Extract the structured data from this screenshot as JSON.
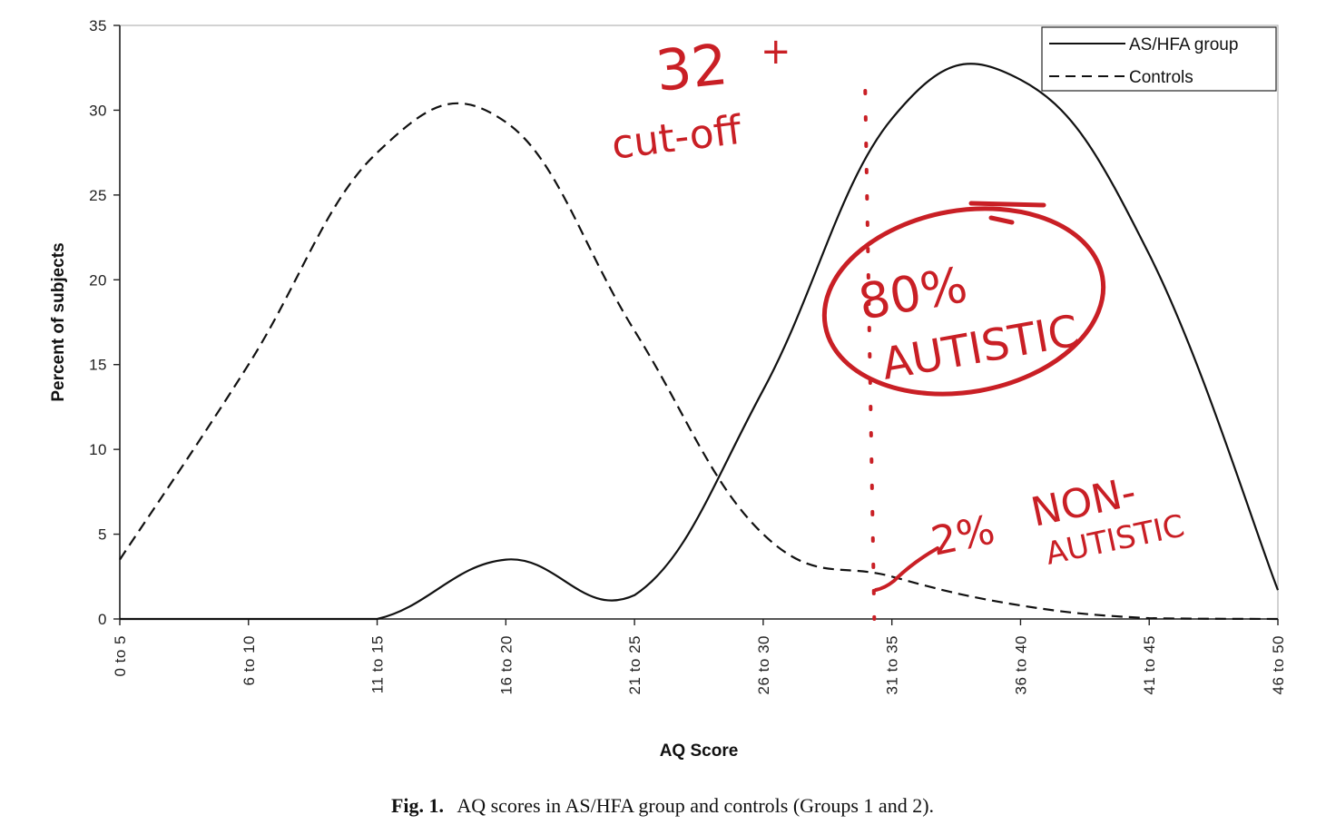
{
  "chart_data": {
    "type": "line",
    "xlabel": "AQ Score",
    "ylabel": "Percent of subjects",
    "ylim": [
      0,
      35
    ],
    "yticks": [
      "0",
      "5",
      "10",
      "15",
      "20",
      "25",
      "30",
      "35"
    ],
    "categories": [
      "0 to 5",
      "6 to 10",
      "11 to 15",
      "16 to 20",
      "21 to 25",
      "26 to 30",
      "31 to 35",
      "36 to 40",
      "41 to 45",
      "46 to 50"
    ],
    "series": [
      {
        "name": "AS/HFA group",
        "style": "solid",
        "color": "#111111",
        "values": [
          0,
          0,
          0,
          3.5,
          1.4,
          13.5,
          29.5,
          31.8,
          21.5,
          1.7
        ]
      },
      {
        "name": "Controls",
        "style": "dashed",
        "color": "#111111",
        "values": [
          3.5,
          15,
          27.5,
          29.3,
          17,
          5,
          2.5,
          0.8,
          0.05,
          0
        ]
      }
    ],
    "legend_position": "top-right",
    "grid": false,
    "caption_label": "Fig. 1.",
    "caption_text": "AQ scores in AS/HFA group and controls (Groups 1 and 2).",
    "annotations": {
      "color": "#c91f25",
      "cutoff_value": 32,
      "cutoff_number": "32",
      "cutoff_plus": "+",
      "cutoff_label": "cut-off",
      "percent_autistic": "80%",
      "autistic_word": "AUTISTIC",
      "percent_non": "2%",
      "non_word": "NON-",
      "non_autistic_word": "AUTISTIC"
    }
  }
}
